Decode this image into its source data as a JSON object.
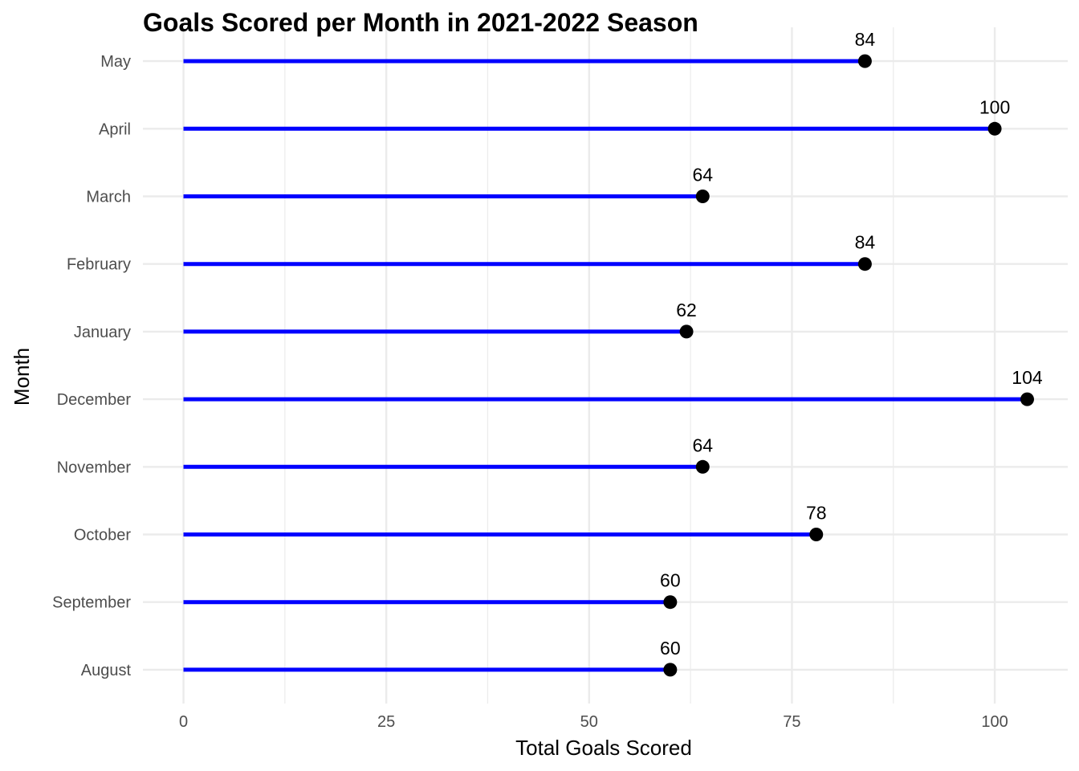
{
  "chart_data": {
    "type": "lollipop",
    "title": "Goals Scored per Month in 2021-2022 Season",
    "xlabel": "Total Goals Scored",
    "ylabel": "Month",
    "orientation": "horizontal",
    "categories": [
      "August",
      "September",
      "October",
      "November",
      "December",
      "January",
      "February",
      "March",
      "April",
      "May"
    ],
    "values": [
      60,
      60,
      78,
      64,
      104,
      62,
      84,
      64,
      100,
      84
    ],
    "data_labels": [
      "60",
      "60",
      "78",
      "64",
      "104",
      "62",
      "84",
      "64",
      "100",
      "84"
    ],
    "xlim": [
      -5,
      109
    ],
    "x_ticks": [
      0,
      25,
      50,
      75,
      100
    ],
    "x_tick_labels": [
      "0",
      "25",
      "50",
      "75",
      "100"
    ],
    "grid": true,
    "colors": {
      "stem": "#0000ff",
      "point": "#000000",
      "grid": "#ebebeb"
    }
  }
}
